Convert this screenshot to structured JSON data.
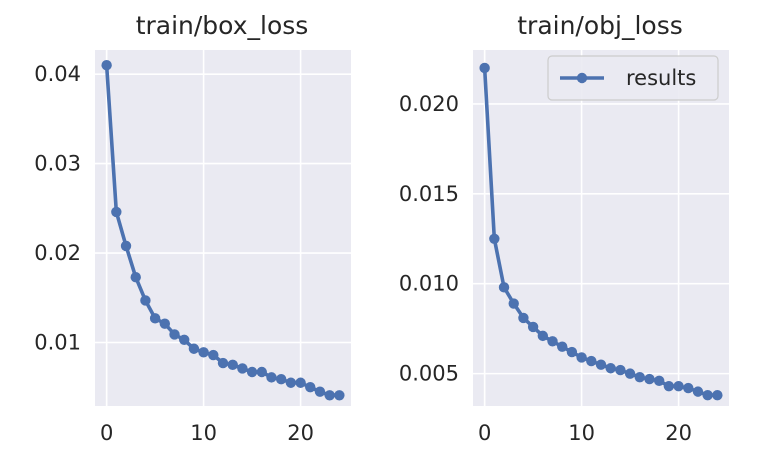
{
  "colors": {
    "axes_background": "#eaeaf2",
    "grid": "#ffffff",
    "series": "#4c72b0",
    "text": "#262626"
  },
  "chart_data": [
    {
      "type": "line",
      "title": "train/box_loss",
      "xlabel": "",
      "ylabel": "",
      "xlim": [
        -1.2,
        25.2
      ],
      "ylim": [
        0.0029,
        0.0427
      ],
      "xticks": [
        0,
        10,
        20
      ],
      "xtick_labels": [
        "0",
        "10",
        "20"
      ],
      "yticks": [
        0.01,
        0.02,
        0.03,
        0.04
      ],
      "ytick_labels": [
        "0.01",
        "0.02",
        "0.03",
        "0.04"
      ],
      "grid": true,
      "legend": null,
      "series": [
        {
          "name": "results",
          "x": [
            0,
            1,
            2,
            3,
            4,
            5,
            6,
            7,
            8,
            9,
            10,
            11,
            12,
            13,
            14,
            15,
            16,
            17,
            18,
            19,
            20,
            21,
            22,
            23,
            24
          ],
          "values": [
            0.041,
            0.0246,
            0.0208,
            0.0173,
            0.0147,
            0.0127,
            0.0121,
            0.0109,
            0.0103,
            0.0093,
            0.0089,
            0.0086,
            0.0077,
            0.0075,
            0.0071,
            0.0067,
            0.0067,
            0.0061,
            0.0059,
            0.0055,
            0.0055,
            0.005,
            0.0045,
            0.0041,
            0.0041
          ]
        }
      ]
    },
    {
      "type": "line",
      "title": "train/obj_loss",
      "xlabel": "",
      "ylabel": "",
      "xlim": [
        -1.2,
        25.2
      ],
      "ylim": [
        0.0032,
        0.023
      ],
      "xticks": [
        0,
        10,
        20
      ],
      "xtick_labels": [
        "0",
        "10",
        "20"
      ],
      "yticks": [
        0.005,
        0.01,
        0.015,
        0.02
      ],
      "ytick_labels": [
        "0.005",
        "0.010",
        "0.015",
        "0.020"
      ],
      "grid": true,
      "legend": "top-right",
      "series": [
        {
          "name": "results",
          "x": [
            0,
            1,
            2,
            3,
            4,
            5,
            6,
            7,
            8,
            9,
            10,
            11,
            12,
            13,
            14,
            15,
            16,
            17,
            18,
            19,
            20,
            21,
            22,
            23,
            24
          ],
          "values": [
            0.022,
            0.0125,
            0.0098,
            0.0089,
            0.0081,
            0.0076,
            0.0071,
            0.0068,
            0.0065,
            0.0062,
            0.0059,
            0.0057,
            0.0055,
            0.0053,
            0.0052,
            0.005,
            0.0048,
            0.0047,
            0.0046,
            0.0043,
            0.0043,
            0.0042,
            0.004,
            0.0038,
            0.0038
          ]
        }
      ]
    }
  ]
}
